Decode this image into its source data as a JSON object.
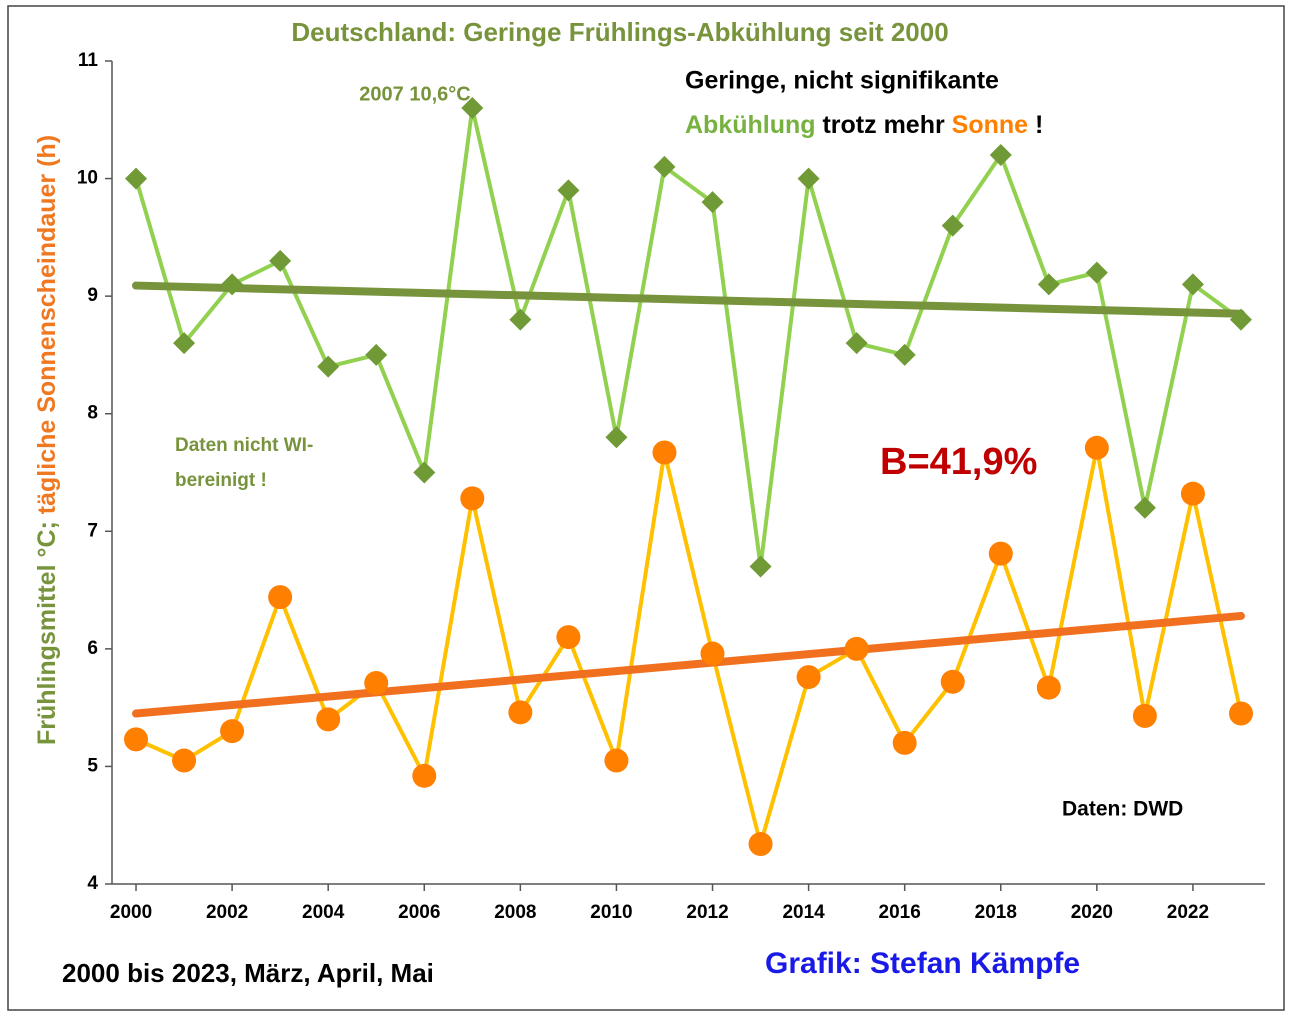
{
  "chart_data": {
    "type": "line",
    "title": "Deutschland: Geringe Frühlings-Abkühlung seit 2000",
    "y_label_parts": [
      {
        "text": "Frühlingsmittel °C; ",
        "color": "#77933c"
      },
      {
        "text": "tägliche Sonnenscheindauer (h)",
        "color": "#f07820"
      }
    ],
    "x": [
      2000,
      2001,
      2002,
      2003,
      2004,
      2005,
      2006,
      2007,
      2008,
      2009,
      2010,
      2011,
      2012,
      2013,
      2014,
      2015,
      2016,
      2017,
      2018,
      2019,
      2020,
      2021,
      2022,
      2023
    ],
    "series": [
      {
        "color": "#92d050",
        "marker_color": "#6f9a35",
        "marker": "diamond",
        "values": [
          10.0,
          8.6,
          9.1,
          9.3,
          8.4,
          8.5,
          7.5,
          10.6,
          8.8,
          9.9,
          7.8,
          10.1,
          9.8,
          6.7,
          10.0,
          8.6,
          8.5,
          9.6,
          10.2,
          9.1,
          9.2,
          7.2,
          9.1,
          8.8
        ]
      },
      {
        "color": "#ffc000",
        "marker_color": "#ff7f00",
        "marker": "circle",
        "values": [
          5.23,
          5.05,
          5.3,
          6.44,
          5.4,
          5.71,
          4.92,
          7.28,
          5.46,
          6.1,
          5.05,
          7.67,
          5.96,
          4.34,
          5.76,
          6.0,
          5.2,
          5.72,
          6.81,
          5.67,
          7.71,
          5.43,
          7.32,
          5.45
        ]
      }
    ],
    "trends": [
      {
        "color": "#77933c",
        "x": [
          2000,
          2023
        ],
        "values": [
          9.09,
          8.85
        ]
      },
      {
        "color": "#f07020",
        "x": [
          2000,
          2023
        ],
        "values": [
          5.45,
          6.28
        ]
      }
    ],
    "xlim": [
      1999.5,
      2023.5
    ],
    "xticks": [
      2000,
      2002,
      2004,
      2006,
      2008,
      2010,
      2012,
      2014,
      2016,
      2018,
      2020,
      2022
    ],
    "ylim": [
      4,
      11
    ],
    "yticks": [
      4,
      5,
      6,
      7,
      8,
      9,
      10,
      11
    ],
    "annotations": {
      "record": "2007 10,6°C",
      "headline_1": "Geringe, nicht signifikante",
      "headline_2": [
        {
          "text": "Abkühlung",
          "color": "#77b240"
        },
        {
          "text": " trotz mehr ",
          "color": "#000000"
        },
        {
          "text": "Sonne",
          "color": "#ff7f00"
        },
        {
          "text": " !",
          "color": "#000000"
        }
      ],
      "note_1": "Daten nicht WI-",
      "note_2": "bereinigt !",
      "b_value": "B=41,9%",
      "source": "Daten: DWD",
      "period": "2000 bis 2023, März, April, Mai",
      "author": "Grafik: Stefan Kämpfe"
    }
  }
}
